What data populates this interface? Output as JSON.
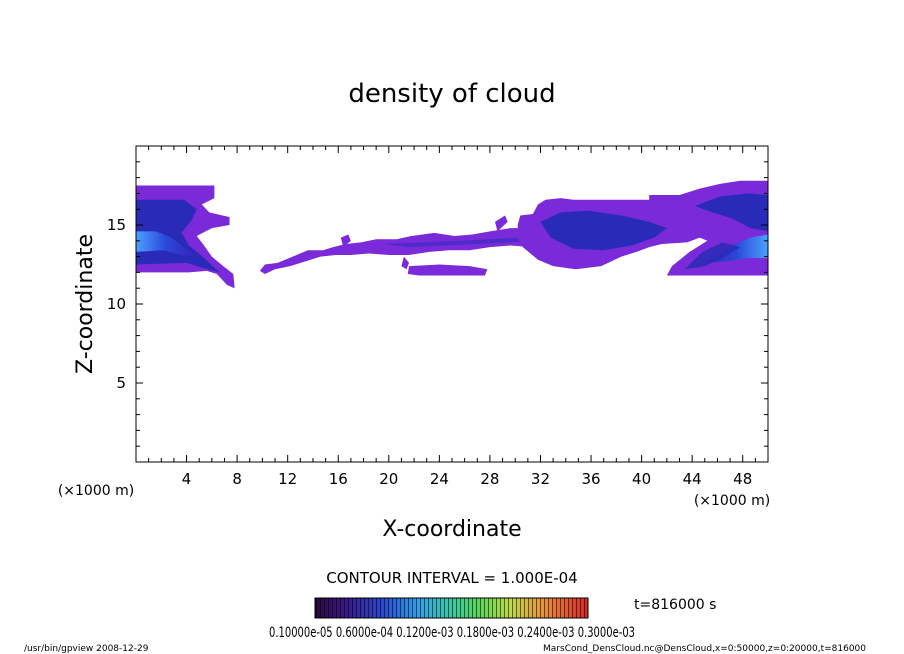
{
  "chart_data": {
    "type": "heatmap",
    "title": "density of cloud",
    "xlabel": "X-coordinate",
    "ylabel": "Z-coordinate",
    "x_unit": "(×1000 m)",
    "y_unit": "(×1000 m)",
    "xlim": [
      0,
      50
    ],
    "ylim": [
      0,
      20
    ],
    "x_ticks": [
      "4",
      "8",
      "12",
      "16",
      "20",
      "24",
      "28",
      "32",
      "36",
      "40",
      "44",
      "48"
    ],
    "y_ticks": [
      "5",
      "10",
      "15"
    ],
    "contour_interval": "CONTOUR INTERVAL = 1.000E-04",
    "time": "t=816000 s",
    "colorbar_labels": "0.10000e-05 0.6000e-04 0.1200e-03 0.1800e-03 0.2400e-03 0.3000e-03",
    "colormap": [
      "#2a0a3c",
      "#4b1d8a",
      "#2c2ca8",
      "#2f5ee0",
      "#33a0e8",
      "#36c8b0",
      "#5cd65c",
      "#b8d84a",
      "#e8b840",
      "#e87838",
      "#d83028"
    ],
    "cloud_fill": "#7a2ad8",
    "cloud_core": "#2a2ab8",
    "cloud_bright": "#4aa0ff",
    "regions": [
      {
        "name": "left-cloud",
        "x": [
          0,
          7.8
        ],
        "z": [
          11,
          17.5
        ]
      },
      {
        "name": "middle-band",
        "x": [
          10,
          33
        ],
        "z": [
          12,
          14.5
        ]
      },
      {
        "name": "lower-strip",
        "x": [
          21.5,
          27.8
        ],
        "z": [
          11.8,
          12.4
        ]
      },
      {
        "name": "right-cloud",
        "x": [
          30,
          50
        ],
        "z": [
          11.8,
          17.8
        ]
      }
    ]
  },
  "footer": {
    "left": "/usr/bin/gpview   2008-12-29",
    "right": "MarsCond_DensCloud.nc@DensCloud,x=0:50000,z=0:20000,t=816000"
  }
}
